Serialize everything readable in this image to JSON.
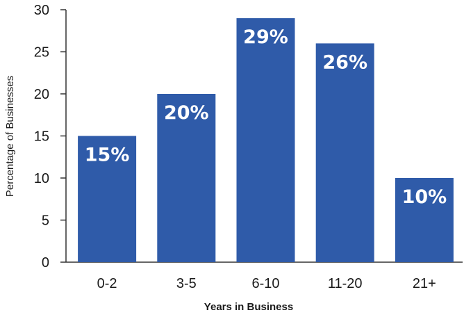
{
  "chart_data": {
    "type": "bar",
    "title": "",
    "xlabel": "Years in Business",
    "ylabel": "Percentage of Businesses",
    "categories": [
      "0-2",
      "3-5",
      "6-10",
      "11-20",
      "21+"
    ],
    "values": [
      15,
      20,
      29,
      26,
      10
    ],
    "data_labels": [
      "15%",
      "20%",
      "29%",
      "26%",
      "10%"
    ],
    "ylim": [
      0,
      30
    ],
    "yticks": [
      0,
      5,
      10,
      15,
      20,
      25,
      30
    ],
    "grid": false,
    "legend": "none",
    "bar_color": "#2f5ba9",
    "label_color": "#ffffff"
  }
}
